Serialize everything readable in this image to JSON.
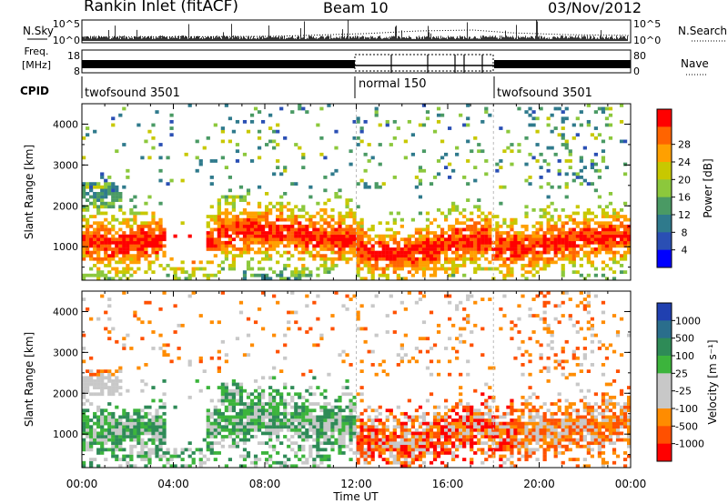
{
  "header": {
    "station": "Rankin Inlet (fitACF)",
    "beam": "Beam 10",
    "date": "03/Nov/2012"
  },
  "panels": {
    "nsky": {
      "label": "N.Sky",
      "ticks": [
        "10^5",
        "10^0"
      ]
    },
    "nsearch": {
      "label": "N.Search",
      "ticks": [
        "10^5",
        "10^0"
      ]
    },
    "freq": {
      "label1": "Freq.",
      "label2": "[MHz]",
      "ticks": [
        "18",
        "8"
      ]
    },
    "nave": {
      "label": "Nave",
      "ticks": [
        "80",
        "0"
      ]
    },
    "cpid": {
      "label": "CPID",
      "segments": [
        "twofsound 3501",
        "normal 150",
        "twofsound 3501"
      ]
    }
  },
  "colors": {
    "power": [
      "#0000ff",
      "#2a4fb4",
      "#2f7a8c",
      "#4a9a64",
      "#8cc83c",
      "#c8c800",
      "#ffa000",
      "#ff6400",
      "#ff0000"
    ],
    "velocity": [
      "#ff0000",
      "#ff5000",
      "#ff8c00",
      "#c8c8c8",
      "#c8c8c8",
      "#3cb43c",
      "#2e8b57",
      "#2a6e8c",
      "#2040b0"
    ]
  },
  "chart_data": [
    {
      "type": "heatmap",
      "name": "Power",
      "xlabel": "",
      "ylabel": "Slant Range [km]",
      "xlim": [
        "00:00",
        "24:00"
      ],
      "ylim": [
        180,
        4500
      ],
      "y_ticks": [
        1000,
        2000,
        3000,
        4000
      ],
      "colorbar": {
        "label": "Power [dB]",
        "ticks": [
          4,
          8,
          12,
          16,
          20,
          24,
          28
        ]
      },
      "grid": false
    },
    {
      "type": "heatmap",
      "name": "Velocity",
      "xlabel": "Time UT",
      "ylabel": "Slant Range [km]",
      "xlim": [
        "00:00",
        "24:00"
      ],
      "ylim": [
        180,
        4500
      ],
      "y_ticks": [
        1000,
        2000,
        3000,
        4000
      ],
      "x_ticks": [
        "00:00",
        "04:00",
        "08:00",
        "12:00",
        "16:00",
        "20:00",
        "00:00"
      ],
      "colorbar": {
        "label": "Velocity [m s⁻¹]",
        "ticks": [
          "1000",
          "500",
          "100",
          "25",
          "-25",
          "-100",
          "-500",
          "-1000"
        ]
      },
      "grid": false
    }
  ]
}
